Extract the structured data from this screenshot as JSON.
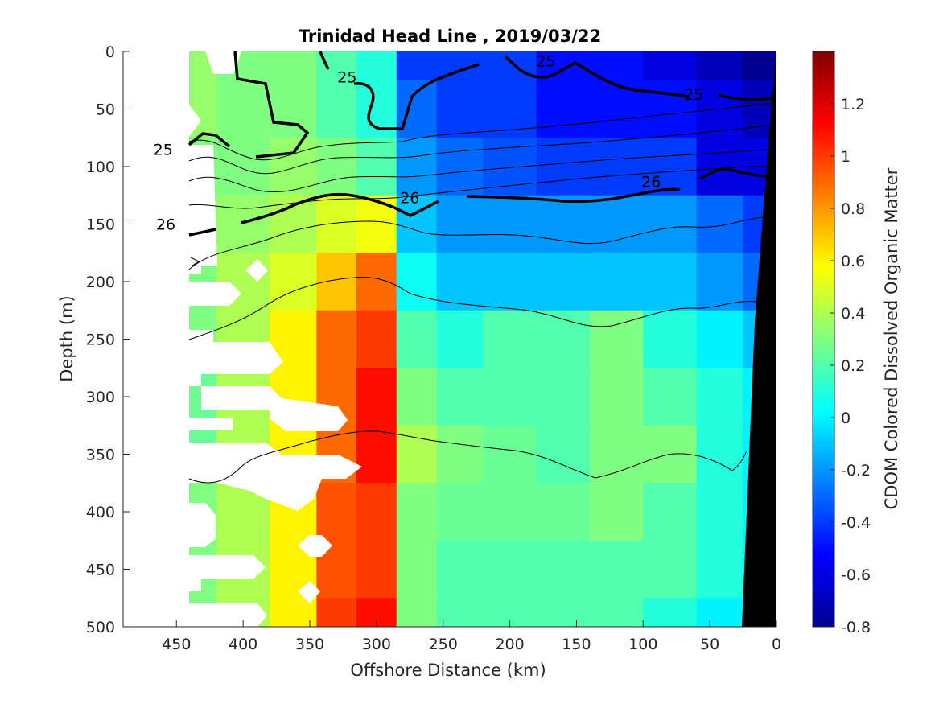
{
  "chart_data": {
    "type": "heatmap",
    "title": "Trinidad Head Line , 2019/03/22",
    "xlabel": "Offshore Distance (km)",
    "ylabel": "Depth (m)",
    "colorbar_label": "CDOM Colored Dissolved Organic Matter",
    "xlim": [
      490,
      0
    ],
    "ylim": [
      0,
      500
    ],
    "x_reversed": true,
    "y_reversed": true,
    "x_ticks": [
      450,
      400,
      350,
      300,
      250,
      200,
      150,
      100,
      50,
      0
    ],
    "y_ticks": [
      0,
      50,
      100,
      150,
      200,
      250,
      300,
      350,
      400,
      450,
      500
    ],
    "color_limits": [
      -0.8,
      1.4
    ],
    "colorbar_ticks": [
      "-0.8",
      "-0.6",
      "-0.4",
      "-0.2",
      "0",
      "0.2",
      "0.4",
      "0.6",
      "0.8",
      "1",
      "1.2"
    ],
    "colormap_name": "jet",
    "colormap": [
      "#00008f",
      "#0000ff",
      "#0080ff",
      "#00ffff",
      "#80ff80",
      "#ffff00",
      "#ff8000",
      "#ff0000",
      "#800000"
    ],
    "grid": false,
    "x": [
      440,
      400,
      360,
      330,
      300,
      270,
      240,
      200,
      160,
      120,
      80,
      40,
      10
    ],
    "depths": [
      0,
      50,
      100,
      150,
      200,
      250,
      300,
      350,
      400,
      450,
      500
    ],
    "values": [
      [
        0.35,
        0.3,
        0.3,
        0.2,
        0.1,
        -0.4,
        -0.4,
        -0.4,
        -0.5,
        -0.5,
        -0.6,
        -0.7,
        -0.8
      ],
      [
        0.35,
        0.3,
        0.3,
        0.2,
        0.1,
        -0.3,
        -0.4,
        -0.4,
        -0.5,
        -0.5,
        -0.5,
        -0.6,
        -0.7
      ],
      [
        0.3,
        0.3,
        0.35,
        0.3,
        0.2,
        -0.2,
        -0.3,
        -0.35,
        -0.4,
        -0.4,
        -0.4,
        -0.6,
        -0.6
      ],
      [
        0.3,
        0.35,
        0.4,
        0.5,
        0.55,
        -0.1,
        -0.2,
        -0.2,
        -0.2,
        -0.2,
        -0.2,
        -0.3,
        -0.4
      ],
      [
        0.3,
        0.4,
        0.5,
        0.7,
        0.9,
        0.05,
        -0.1,
        -0.1,
        -0.1,
        -0.1,
        -0.1,
        -0.2,
        -0.3
      ],
      [
        0.3,
        0.4,
        0.6,
        0.9,
        1.0,
        0.2,
        0.1,
        0.2,
        0.2,
        0.3,
        0.1,
        0.0,
        -0.1
      ],
      [
        0.25,
        0.4,
        0.6,
        0.9,
        1.1,
        0.3,
        0.2,
        0.2,
        0.2,
        0.3,
        0.2,
        0.1,
        0.0
      ],
      [
        0.25,
        0.4,
        0.6,
        0.9,
        1.1,
        0.4,
        0.3,
        0.25,
        0.2,
        0.3,
        0.3,
        0.1,
        0.0
      ],
      [
        0.3,
        0.4,
        0.6,
        0.95,
        1.0,
        0.3,
        0.25,
        0.25,
        0.25,
        0.3,
        0.2,
        0.1,
        0.0
      ],
      [
        0.3,
        0.4,
        0.6,
        0.95,
        1.0,
        0.3,
        0.2,
        0.2,
        0.2,
        0.2,
        0.2,
        0.1,
        0.0
      ],
      [
        0.3,
        0.4,
        0.6,
        1.0,
        1.1,
        0.3,
        0.2,
        0.2,
        0.2,
        0.2,
        0.1,
        0.0,
        0.0
      ]
    ],
    "contour_labels": [
      {
        "text": "25",
        "x": 322,
        "depth": 22
      },
      {
        "text": "25",
        "x": 173,
        "depth": 8
      },
      {
        "text": "25",
        "x": 62,
        "depth": 37
      },
      {
        "text": "25",
        "x": 460,
        "depth": 85
      },
      {
        "text": "26",
        "x": 458,
        "depth": 150
      },
      {
        "text": "26",
        "x": 275,
        "depth": 127
      },
      {
        "text": "26",
        "x": 94,
        "depth": 113
      }
    ]
  }
}
